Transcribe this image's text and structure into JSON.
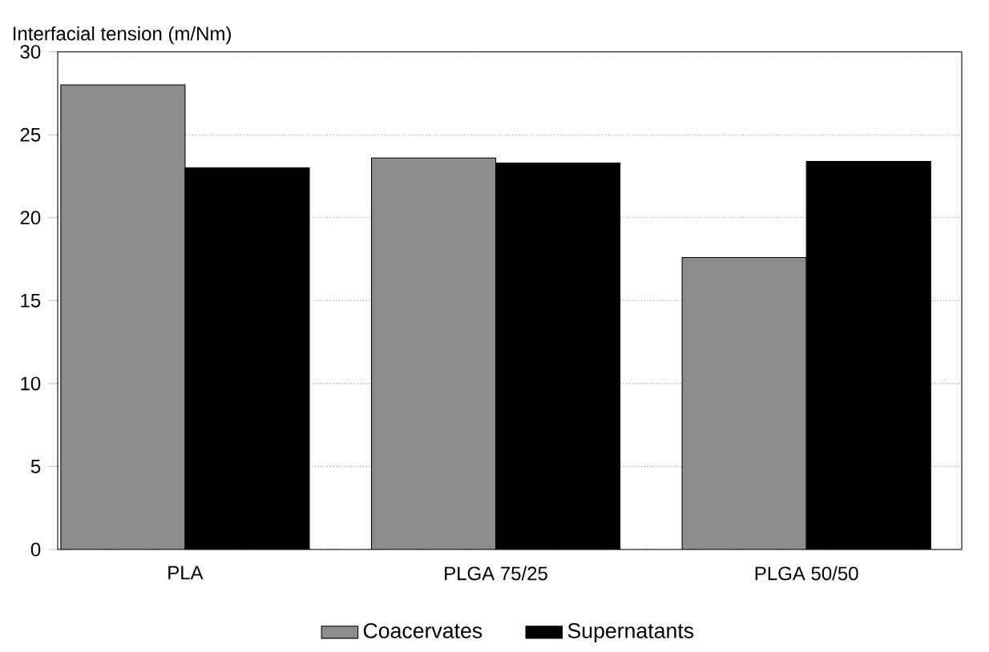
{
  "chart_data": {
    "type": "bar",
    "ylabel": "Interfacial tension (m/Nm)",
    "categories": [
      "PLA",
      "PLGA 75/25",
      "PLGA 50/50"
    ],
    "series": [
      {
        "name": "Coacervates",
        "color": "#8c8c8c",
        "values": [
          28,
          23.6,
          17.6
        ]
      },
      {
        "name": "Supernatants",
        "color": "#000000",
        "values": [
          23,
          23.3,
          23.4
        ]
      }
    ],
    "ylim": [
      0,
      30
    ],
    "yticks": [
      0,
      5,
      10,
      15,
      20,
      25,
      30
    ],
    "grid": "y",
    "legend": "bottom"
  }
}
